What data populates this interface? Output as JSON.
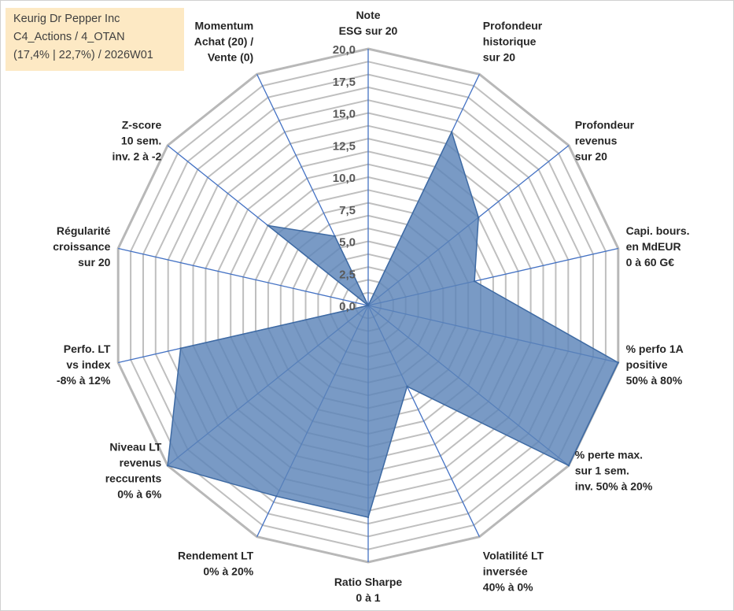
{
  "info": {
    "line1": "Keurig Dr Pepper Inc",
    "line2": "C4_Actions / 4_OTAN",
    "line3": "(17,4% | 22,7%) / 2026W01"
  },
  "colors": {
    "fill": "#5b84b8",
    "stroke": "#3e6aa3",
    "grid": "#bfbfbf",
    "spoke": "#4472c4"
  },
  "chart_data": {
    "type": "radar",
    "title": "",
    "rmin": 0,
    "rmax": 20,
    "ticks": [
      "0,0",
      "2,5",
      "5,0",
      "7,5",
      "10,0",
      "12,5",
      "15,0",
      "17,5",
      "20,0"
    ],
    "axes": [
      {
        "lines": [
          "Note",
          "ESG sur 20"
        ],
        "value": 0
      },
      {
        "lines": [
          "Profondeur",
          "historique",
          "sur 20"
        ],
        "value": 15
      },
      {
        "lines": [
          "Profondeur",
          "revenus",
          "sur 20"
        ],
        "value": 11
      },
      {
        "lines": [
          "Capi. bours.",
          "en MdEUR",
          "0 à 60 G€"
        ],
        "value": 8.5
      },
      {
        "lines": [
          "% perfo 1A",
          "positive",
          "50% à 80%"
        ],
        "value": 20
      },
      {
        "lines": [
          "% perte max.",
          "sur 1 sem.",
          "inv. 50% à 20%"
        ],
        "value": 20
      },
      {
        "lines": [
          "Volatilité LT",
          "inversée",
          "40% à 0%"
        ],
        "value": 7
      },
      {
        "lines": [
          "Ratio Sharpe",
          "0 à 1"
        ],
        "value": 16.5
      },
      {
        "lines": [
          "Rendement LT",
          "0% à 20%"
        ],
        "value": 16.5
      },
      {
        "lines": [
          "Niveau LT",
          "revenus",
          "reccurents",
          "0% à 6%"
        ],
        "value": 20
      },
      {
        "lines": [
          "Perfo. LT",
          "vs index",
          "-8% à 12%"
        ],
        "value": 15
      },
      {
        "lines": [
          "Régularité",
          "croissance",
          "sur 20"
        ],
        "value": 0
      },
      {
        "lines": [
          "Z-score",
          "10 sem.",
          "inv. 2 à -2"
        ],
        "value": 10
      },
      {
        "lines": [
          "Momentum",
          "Achat (20) /",
          "Vente (0)"
        ],
        "value": 6
      }
    ]
  }
}
